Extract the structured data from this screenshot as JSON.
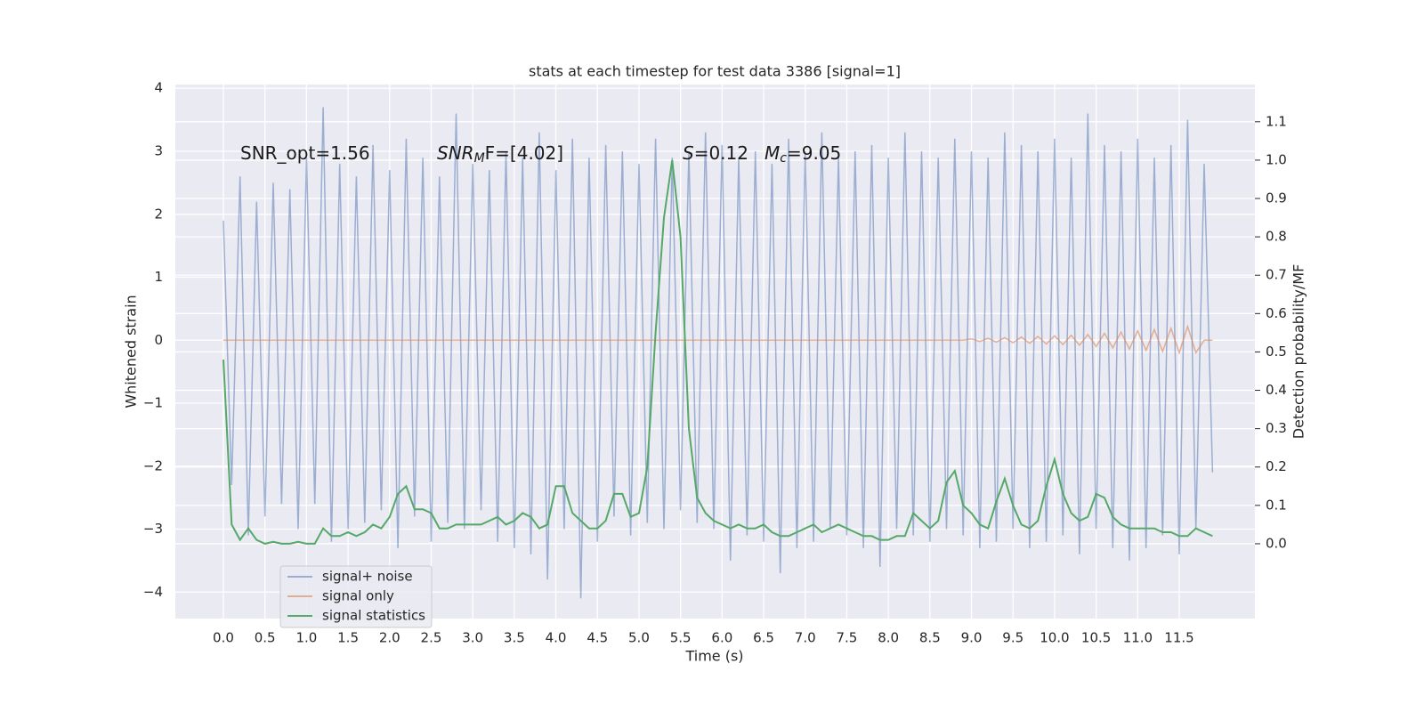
{
  "chart_data": {
    "type": "line",
    "title": "stats at each timestep for test data 3386 [signal=1]",
    "xlabel": "Time (s)",
    "ylabel": "Whitened strain",
    "y2label": "Detection probability/MF",
    "annotations": [
      {
        "main": "SNR_opt=1.56"
      },
      {
        "main": "SNR",
        "sub": "M",
        "tail": "F=[4.02]"
      },
      {
        "main": "S",
        "tail": "=0.12"
      },
      {
        "main": "M",
        "sub": "c",
        "tail": "=9.05"
      }
    ],
    "x": [
      0,
      0.1,
      0.2,
      0.3,
      0.4,
      0.5,
      0.6,
      0.7,
      0.8,
      0.9,
      1,
      1.1,
      1.2,
      1.3,
      1.4,
      1.5,
      1.6,
      1.7,
      1.8,
      1.9,
      2,
      2.1,
      2.2,
      2.3,
      2.4,
      2.5,
      2.6,
      2.7,
      2.8,
      2.9,
      3,
      3.1,
      3.2,
      3.3,
      3.4,
      3.5,
      3.6,
      3.7,
      3.8,
      3.9,
      4,
      4.1,
      4.2,
      4.3,
      4.4,
      4.5,
      4.6,
      4.7,
      4.8,
      4.9,
      5,
      5.1,
      5.2,
      5.3,
      5.4,
      5.5,
      5.6,
      5.7,
      5.8,
      5.9,
      6,
      6.1,
      6.2,
      6.3,
      6.4,
      6.5,
      6.6,
      6.7,
      6.8,
      6.9,
      7,
      7.1,
      7.2,
      7.3,
      7.4,
      7.5,
      7.6,
      7.7,
      7.8,
      7.9,
      8,
      8.1,
      8.2,
      8.3,
      8.4,
      8.5,
      8.6,
      8.7,
      8.8,
      8.9,
      9,
      9.1,
      9.2,
      9.3,
      9.4,
      9.5,
      9.6,
      9.7,
      9.8,
      9.9,
      10,
      10.1,
      10.2,
      10.3,
      10.4,
      10.5,
      10.6,
      10.7,
      10.8,
      10.9,
      11,
      11.1,
      11.2,
      11.3,
      11.4,
      11.5,
      11.6,
      11.7,
      11.8,
      11.9
    ],
    "series": [
      {
        "name": "signal+ noise",
        "color": "#4c72b0",
        "opacity": 0.5,
        "values": [
          1.9,
          -2.3,
          2.6,
          -3.1,
          2.2,
          -2.8,
          2.5,
          -2.6,
          2.4,
          -3.0,
          2.9,
          -2.6,
          3.7,
          -3.2,
          2.8,
          -3.0,
          2.6,
          -2.9,
          3.1,
          -2.7,
          2.7,
          -3.3,
          3.2,
          -2.8,
          2.9,
          -3.2,
          2.6,
          -2.9,
          3.6,
          -3.0,
          2.8,
          -2.7,
          2.7,
          -3.2,
          3.0,
          -3.3,
          2.9,
          -3.4,
          3.3,
          -3.8,
          2.7,
          -3.0,
          3.2,
          -4.1,
          2.9,
          -3.2,
          3.1,
          -2.8,
          3.0,
          -3.1,
          2.8,
          -2.9,
          3.2,
          -3.0,
          2.9,
          -2.7,
          3.0,
          -2.9,
          3.3,
          -3.0,
          3.1,
          -3.5,
          2.9,
          -3.1,
          3.0,
          -3.2,
          2.8,
          -3.7,
          3.2,
          -3.3,
          3.0,
          -3.2,
          3.3,
          -3.0,
          2.9,
          -3.1,
          3.0,
          -3.3,
          3.1,
          -3.6,
          2.9,
          -3.0,
          3.3,
          -3.1,
          3.0,
          -3.2,
          2.9,
          -3.0,
          3.2,
          -3.1,
          3.0,
          -3.3,
          2.9,
          -3.2,
          3.3,
          -3.0,
          3.1,
          -3.3,
          3.0,
          -3.2,
          3.2,
          -3.1,
          2.9,
          -3.4,
          3.6,
          -3.0,
          3.1,
          -3.3,
          3.0,
          -3.5,
          3.2,
          -3.3,
          2.9,
          -3.1,
          3.1,
          -3.4,
          3.5,
          -3.0,
          2.8,
          -2.1
        ]
      },
      {
        "name": "signal only",
        "color": "#dd8452",
        "opacity": 0.6,
        "values": [
          0,
          0,
          0,
          0,
          0,
          0,
          0,
          0,
          0,
          0,
          0,
          0,
          0,
          0,
          0,
          0,
          0,
          0,
          0,
          0,
          0,
          0,
          0,
          0,
          0,
          0,
          0,
          0,
          0,
          0,
          0,
          0,
          0,
          0,
          0,
          0,
          0,
          0,
          0,
          0,
          0,
          0,
          0,
          0,
          0,
          0,
          0,
          0,
          0,
          0,
          0,
          0,
          0,
          0,
          0,
          0,
          0,
          0,
          0,
          0,
          0,
          0,
          0,
          0,
          0,
          0,
          0,
          0,
          0,
          0,
          0,
          0,
          0,
          0,
          0,
          0,
          0,
          0,
          0,
          0,
          0,
          0,
          0,
          0,
          0,
          0,
          0,
          0,
          0,
          0,
          0.02,
          -0.02,
          0.03,
          -0.03,
          0.04,
          -0.04,
          0.05,
          -0.05,
          0.06,
          -0.06,
          0.07,
          -0.07,
          0.08,
          -0.08,
          0.09,
          -0.1,
          0.11,
          -0.12,
          0.13,
          -0.14,
          0.15,
          -0.16,
          0.17,
          -0.18,
          0.19,
          -0.2,
          0.22,
          -0.2,
          0,
          0
        ]
      },
      {
        "name": "signal statistics",
        "color": "#55a868",
        "axis": "y2",
        "values": [
          0.48,
          0.05,
          0.01,
          0.04,
          0.01,
          0.0,
          0.005,
          0.0,
          0.0,
          0.005,
          0.0,
          0.0,
          0.04,
          0.02,
          0.02,
          0.03,
          0.02,
          0.03,
          0.05,
          0.04,
          0.07,
          0.13,
          0.15,
          0.09,
          0.09,
          0.08,
          0.04,
          0.04,
          0.05,
          0.05,
          0.05,
          0.05,
          0.06,
          0.07,
          0.05,
          0.06,
          0.08,
          0.07,
          0.04,
          0.05,
          0.15,
          0.15,
          0.08,
          0.06,
          0.04,
          0.04,
          0.06,
          0.13,
          0.13,
          0.07,
          0.08,
          0.2,
          0.55,
          0.85,
          1.0,
          0.8,
          0.3,
          0.12,
          0.08,
          0.06,
          0.05,
          0.04,
          0.05,
          0.04,
          0.04,
          0.05,
          0.03,
          0.02,
          0.02,
          0.03,
          0.04,
          0.05,
          0.03,
          0.04,
          0.05,
          0.04,
          0.03,
          0.02,
          0.02,
          0.01,
          0.01,
          0.02,
          0.02,
          0.08,
          0.06,
          0.04,
          0.06,
          0.16,
          0.19,
          0.1,
          0.08,
          0.05,
          0.04,
          0.11,
          0.17,
          0.1,
          0.05,
          0.04,
          0.06,
          0.15,
          0.22,
          0.13,
          0.08,
          0.06,
          0.07,
          0.13,
          0.12,
          0.07,
          0.05,
          0.04,
          0.04,
          0.04,
          0.04,
          0.03,
          0.03,
          0.02,
          0.02,
          0.04,
          0.03,
          0.02
        ]
      }
    ],
    "xlim": [
      -0.578,
      12.41
    ],
    "ylim": [
      -4.42,
      4.06
    ],
    "y2lim": [
      -0.195,
      1.197
    ],
    "xticks": [
      {
        "value": 0,
        "label": "0.0"
      },
      0.5,
      {
        "value": 1,
        "label": "1.0"
      },
      1.5,
      {
        "value": 2,
        "label": "2.0"
      },
      2.5,
      {
        "value": 3,
        "label": "3.0"
      },
      3.5,
      {
        "value": 4,
        "label": "4.0"
      },
      4.5,
      {
        "value": 5,
        "label": "5.0"
      },
      5.5,
      {
        "value": 6,
        "label": "6.0"
      },
      6.5,
      {
        "value": 7,
        "label": "7.0"
      },
      7.5,
      {
        "value": 8,
        "label": "8.0"
      },
      8.5,
      {
        "value": 9,
        "label": "9.0"
      },
      9.5,
      {
        "value": 10,
        "label": "10.0"
      },
      10.5,
      {
        "value": 11,
        "label": "11.0"
      },
      11.5
    ],
    "yticks": [
      {
        "value": -4,
        "label": "−4"
      },
      {
        "value": -3,
        "label": "−3"
      },
      {
        "value": -2,
        "label": "−2"
      },
      {
        "value": -1,
        "label": "−1"
      },
      0,
      1,
      2,
      3,
      4
    ],
    "y2ticks": [
      {
        "value": 0,
        "label": "0.0"
      },
      0.1,
      0.2,
      0.3,
      0.4,
      0.5,
      0.6,
      0.7,
      0.8,
      0.9,
      {
        "value": 1,
        "label": "1.0"
      },
      1.1
    ],
    "grid": true,
    "legend": "lower left"
  }
}
